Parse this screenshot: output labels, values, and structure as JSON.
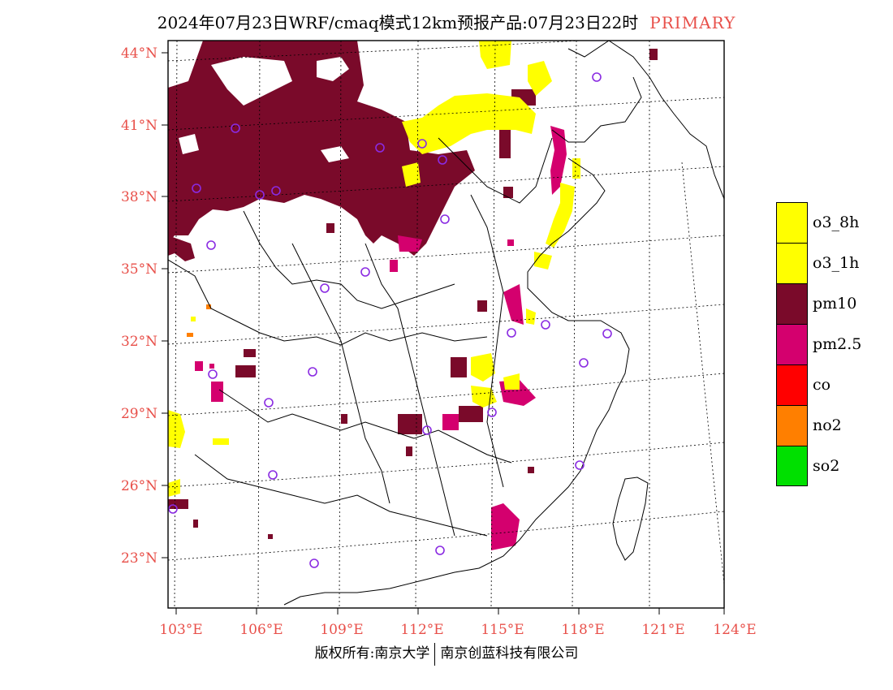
{
  "title": {
    "main": "2024年07月23日WRF/cmaq模式12km预报产品:07月23日22时",
    "tag": "PRIMARY"
  },
  "axes": {
    "lat_labels": [
      "44°N",
      "41°N",
      "38°N",
      "35°N",
      "32°N",
      "29°N",
      "26°N",
      "23°N"
    ],
    "lon_labels": [
      "103°E",
      "106°E",
      "109°E",
      "112°E",
      "115°E",
      "118°E",
      "121°E",
      "124°E"
    ]
  },
  "legend": [
    {
      "label": "o3_8h",
      "color": "#ffff00"
    },
    {
      "label": "o3_1h",
      "color": "#ffff00"
    },
    {
      "label": "pm10",
      "color": "#7a0a2a"
    },
    {
      "label": "pm2.5",
      "color": "#d4006e"
    },
    {
      "label": "co",
      "color": "#ff0000"
    },
    {
      "label": "no2",
      "color": "#ff7f00"
    },
    {
      "label": "so2",
      "color": "#00e000"
    }
  ],
  "footer": {
    "left": "版权所有:南京大学",
    "right": "南京创蓝科技有限公司"
  },
  "colors": {
    "pm10": "#7a0a2a",
    "pm25": "#d4006e",
    "o3": "#ffff00",
    "no2": "#ff7f00",
    "station": "#8a2be2",
    "label": "#e8504a"
  }
}
